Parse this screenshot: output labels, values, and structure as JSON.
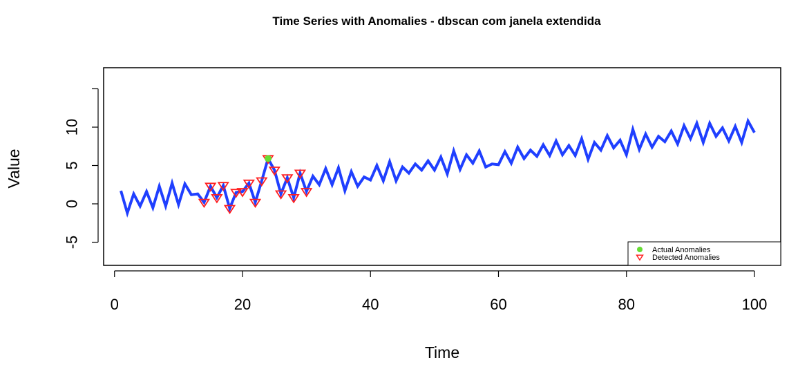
{
  "chart_data": {
    "type": "line",
    "title": "Time Series with Anomalies - dbscan com janela extendida",
    "xlabel": "Time",
    "ylabel": "Value",
    "xlim": [
      1,
      100
    ],
    "ylim": [
      -8,
      18
    ],
    "x_ticks": [
      0,
      20,
      40,
      60,
      80,
      100
    ],
    "y_ticks": [
      -5,
      0,
      5,
      10
    ],
    "grid": false,
    "legend_position": "bottom-right",
    "series": [
      {
        "values": [
          1.7,
          -1.2,
          1.3,
          -0.3,
          1.6,
          -0.5,
          2.3,
          -0.3,
          2.7,
          -0.1,
          2.6,
          1.2,
          1.3,
          0.2,
          2.3,
          0.8,
          2.4,
          -0.6,
          1.5,
          1.6,
          2.7,
          0.2,
          3.0,
          5.9,
          4.4,
          1.3,
          3.4,
          0.8,
          4.0,
          1.6,
          3.6,
          2.5,
          4.6,
          2.5,
          4.7,
          1.7,
          4.2,
          2.3,
          3.5,
          3.1,
          5.0,
          3.0,
          5.5,
          3.0,
          4.8,
          4.0,
          5.2,
          4.4,
          5.6,
          4.4,
          6.1,
          3.9,
          6.9,
          4.5,
          6.4,
          5.3,
          6.9,
          4.8,
          5.2,
          5.1,
          6.8,
          5.3,
          7.4,
          5.9,
          7.0,
          6.2,
          7.7,
          6.3,
          8.2,
          6.4,
          7.6,
          6.3,
          8.5,
          5.8,
          8.0,
          7.0,
          8.9,
          7.3,
          8.3,
          6.4,
          9.7,
          7.1,
          9.1,
          7.4,
          8.8,
          8.1,
          9.5,
          7.8,
          10.2,
          8.5,
          10.5,
          8.0,
          10.5,
          8.8,
          9.9,
          8.2,
          10.1,
          8.0,
          10.8,
          9.3
        ],
        "color": "#1f3fff"
      }
    ],
    "actual_anomalies": [
      {
        "x": 24,
        "y": 5.9
      }
    ],
    "detected_anomalies": [
      {
        "x": 14,
        "y": 0.2
      },
      {
        "x": 15,
        "y": 2.3
      },
      {
        "x": 16,
        "y": 0.8
      },
      {
        "x": 17,
        "y": 2.4
      },
      {
        "x": 18,
        "y": -0.6
      },
      {
        "x": 19,
        "y": 1.5
      },
      {
        "x": 20,
        "y": 1.6
      },
      {
        "x": 21,
        "y": 2.7
      },
      {
        "x": 22,
        "y": 0.2
      },
      {
        "x": 23,
        "y": 3.0
      },
      {
        "x": 24,
        "y": 5.9
      },
      {
        "x": 25,
        "y": 4.4
      },
      {
        "x": 26,
        "y": 1.3
      },
      {
        "x": 27,
        "y": 3.4
      },
      {
        "x": 28,
        "y": 0.8
      },
      {
        "x": 29,
        "y": 4.0
      },
      {
        "x": 30,
        "y": 1.6
      }
    ],
    "legend": [
      {
        "label": "Actual Anomalies",
        "marker": "filled-circle",
        "color": "#66dd33"
      },
      {
        "label": "Detected Anomalies",
        "marker": "open-triangle-down",
        "color": "#ff2020"
      }
    ]
  }
}
